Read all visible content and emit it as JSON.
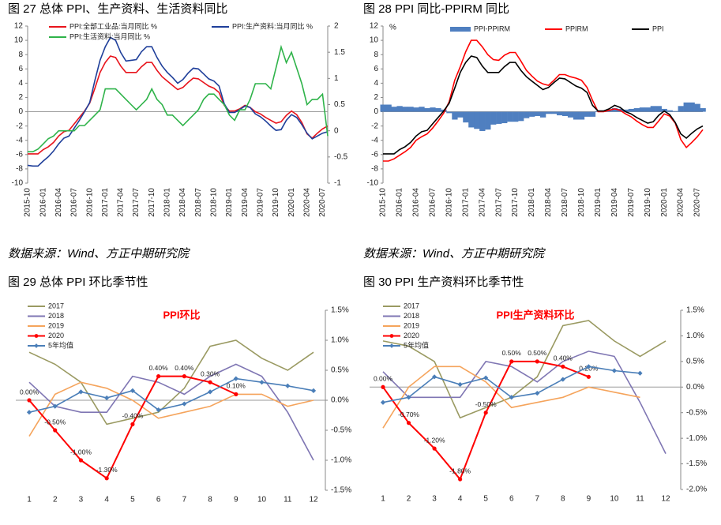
{
  "chart_data": [
    {
      "type": "line",
      "caption": "图 27  总体 PPI、生产资料、生活资料同比",
      "source": "数据来源：Wind、方正中期研究院",
      "categories": [
        "2015-10",
        null,
        null,
        "2016-01",
        null,
        null,
        "2016-04",
        null,
        null,
        "2016-07",
        null,
        null,
        "2016-10",
        null,
        null,
        "2017-01",
        null,
        null,
        "2017-04",
        null,
        null,
        "2017-07",
        null,
        null,
        "2017-10",
        null,
        null,
        "2018-01",
        null,
        null,
        "2018-04",
        null,
        null,
        "2018-07",
        null,
        null,
        "2018-10",
        null,
        null,
        "2019-01",
        null,
        null,
        "2019-04",
        null,
        null,
        "2019-07",
        null,
        null,
        "2019-10",
        null,
        null,
        "2020-01",
        null,
        null,
        "2020-04",
        null,
        null,
        "2020-07",
        null
      ],
      "ylim": [
        -10,
        12
      ],
      "yticks": [
        -10,
        -8,
        -6,
        -4,
        -2,
        0,
        2,
        4,
        6,
        8,
        10,
        12
      ],
      "y2lim": [
        -1,
        2
      ],
      "y2ticks": [
        -1,
        -0.5,
        0,
        0.5,
        1,
        1.5,
        2
      ],
      "series": [
        {
          "name": "PPI:全部工业品:当月同比 %",
          "color": "#e8141c",
          "values": [
            -5.9,
            -5.9,
            -5.9,
            -5.3,
            -4.9,
            -4.3,
            -3.4,
            -2.8,
            -2.6,
            -1.7,
            -0.8,
            0.1,
            1.2,
            3.3,
            5.5,
            6.9,
            7.8,
            7.6,
            6.4,
            5.5,
            5.5,
            5.5,
            6.3,
            6.9,
            6.9,
            5.8,
            4.9,
            4.3,
            3.7,
            3.1,
            3.4,
            4.1,
            4.7,
            4.6,
            4.1,
            3.6,
            3.3,
            2.7,
            0.9,
            0.1,
            0.1,
            0.4,
            0.9,
            0.6,
            0.0,
            -0.3,
            -0.8,
            -1.2,
            -1.6,
            -1.4,
            -0.5,
            0.1,
            -0.4,
            -1.5,
            -3.1,
            -3.7,
            -3.0,
            -2.4,
            -2.0
          ]
        },
        {
          "name": "PPI:生产资料:当月同比 %",
          "color": "#1f3f9a",
          "values": [
            -7.5,
            -7.6,
            -7.6,
            -6.9,
            -6.3,
            -5.5,
            -4.5,
            -3.7,
            -3.4,
            -2.3,
            -1.2,
            0.0,
            1.3,
            4.4,
            7.2,
            9.1,
            10.4,
            10.0,
            8.3,
            7.1,
            7.2,
            7.3,
            8.4,
            9.1,
            9.1,
            7.6,
            6.4,
            5.5,
            4.8,
            4.0,
            4.5,
            5.4,
            6.1,
            6.0,
            5.3,
            4.6,
            4.3,
            3.6,
            1.1,
            -0.1,
            -0.1,
            0.3,
            0.8,
            0.6,
            -0.3,
            -0.7,
            -1.3,
            -2.0,
            -2.6,
            -2.5,
            -1.2,
            -0.4,
            -0.8,
            -1.8,
            -3.0,
            -3.8,
            -3.4,
            -3.0,
            -2.8
          ]
        },
        {
          "name": "PPI:生活资料:当月同比 %",
          "color": "#2fb34a",
          "axis": "y2",
          "values": [
            -0.4,
            -0.4,
            -0.35,
            -0.25,
            -0.15,
            -0.1,
            0.0,
            0.0,
            0.0,
            0.0,
            0.1,
            0.1,
            0.2,
            0.3,
            0.4,
            0.8,
            0.8,
            0.8,
            0.7,
            0.6,
            0.5,
            0.4,
            0.5,
            0.6,
            0.8,
            0.6,
            0.5,
            0.3,
            0.3,
            0.2,
            0.1,
            0.2,
            0.3,
            0.4,
            0.6,
            0.7,
            0.7,
            0.6,
            0.5,
            0.3,
            0.2,
            0.4,
            0.4,
            0.6,
            0.9,
            0.9,
            0.9,
            0.8,
            1.2,
            1.6,
            1.3,
            1.5,
            1.2,
            0.9,
            0.5,
            0.6,
            0.6,
            0.7,
            -0.1
          ]
        }
      ]
    },
    {
      "type": "line",
      "caption": "图 28  PPI 同比-PPIRM 同比",
      "source": "数据来源：Wind、方正中期研究院",
      "ylabel": "%",
      "categories": [
        "2015-10",
        null,
        null,
        "2016-01",
        null,
        null,
        "2016-04",
        null,
        null,
        "2016-07",
        null,
        null,
        "2016-10",
        null,
        null,
        "2017-01",
        null,
        null,
        "2017-04",
        null,
        null,
        "2017-07",
        null,
        null,
        "2017-10",
        null,
        null,
        "2018-01",
        null,
        null,
        "2018-04",
        null,
        null,
        "2018-07",
        null,
        null,
        "2018-10",
        null,
        null,
        "2019-01",
        null,
        null,
        "2019-04",
        null,
        null,
        "2019-07",
        null,
        null,
        "2019-10",
        null,
        null,
        "2020-01",
        null,
        null,
        "2020-04",
        null,
        null,
        "2020-07",
        null
      ],
      "ylim": [
        -10,
        12
      ],
      "yticks": [
        -10,
        -8,
        -6,
        -4,
        -2,
        0,
        2,
        4,
        6,
        8,
        10,
        12
      ],
      "series": [
        {
          "name": "PPI-PPIRM",
          "color": "#4f7fc0",
          "kind": "bar",
          "values": [
            1.0,
            1.0,
            0.7,
            0.8,
            0.7,
            0.7,
            0.6,
            0.7,
            0.5,
            0.6,
            0.5,
            0.3,
            -0.2,
            -1.1,
            -0.8,
            -1.5,
            -2.2,
            -2.4,
            -2.7,
            -2.5,
            -1.8,
            -1.7,
            -1.6,
            -1.4,
            -1.4,
            -1.3,
            -0.9,
            -0.7,
            -0.6,
            -0.8,
            -0.3,
            -0.3,
            -0.5,
            -0.6,
            -0.8,
            -1.1,
            -1.1,
            -0.7,
            -0.7,
            0.1,
            0.1,
            0.2,
            0.5,
            0.4,
            0.3,
            0.4,
            0.5,
            0.6,
            0.6,
            0.8,
            0.8,
            0.4,
            0.2,
            0.1,
            0.8,
            1.3,
            1.3,
            1.1,
            0.5
          ]
        },
        {
          "name": "PPIRM",
          "color": "#ff0000",
          "values": [
            -6.9,
            -6.9,
            -6.6,
            -6.1,
            -5.6,
            -5.0,
            -4.0,
            -3.5,
            -3.1,
            -2.3,
            -1.3,
            -0.2,
            1.4,
            4.4,
            6.3,
            8.4,
            10.0,
            10.0,
            9.1,
            8.0,
            7.3,
            7.2,
            7.9,
            8.3,
            8.3,
            7.1,
            5.8,
            5.0,
            4.3,
            3.9,
            3.7,
            4.4,
            5.2,
            5.2,
            4.9,
            4.7,
            4.4,
            3.4,
            1.6,
            0.0,
            0.0,
            0.2,
            0.4,
            0.2,
            -0.3,
            -0.7,
            -1.3,
            -1.8,
            -2.2,
            -2.2,
            -1.3,
            -0.3,
            -0.6,
            -1.6,
            -3.9,
            -5.0,
            -4.3,
            -3.5,
            -2.5
          ]
        },
        {
          "name": "PPI",
          "color": "#000000",
          "values": [
            -5.9,
            -5.9,
            -5.9,
            -5.3,
            -4.9,
            -4.3,
            -3.4,
            -2.8,
            -2.6,
            -1.7,
            -0.8,
            0.1,
            1.2,
            3.3,
            5.5,
            6.9,
            7.8,
            7.6,
            6.4,
            5.5,
            5.5,
            5.5,
            6.3,
            6.9,
            6.9,
            5.8,
            4.9,
            4.3,
            3.7,
            3.1,
            3.4,
            4.1,
            4.7,
            4.6,
            4.1,
            3.6,
            3.3,
            2.7,
            0.9,
            0.1,
            0.1,
            0.4,
            0.9,
            0.6,
            0.0,
            -0.3,
            -0.8,
            -1.2,
            -1.6,
            -1.4,
            -0.5,
            0.1,
            -0.4,
            -1.5,
            -3.1,
            -3.7,
            -3.0,
            -2.4,
            -2.0
          ]
        }
      ]
    },
    {
      "type": "line",
      "caption": "图 29  总体 PPI 环比季节性",
      "title": "PPI环比",
      "categories": [
        "1",
        "2",
        "3",
        "4",
        "5",
        "6",
        "7",
        "8",
        "9",
        "10",
        "11",
        "12"
      ],
      "ylim": [
        -1.5,
        1.5
      ],
      "yticks": [
        {
          "value": -1.5,
          "label": "-1.5%"
        },
        {
          "value": -1.0,
          "label": "-1.0%"
        },
        {
          "value": -0.5,
          "label": "-0.5%"
        },
        {
          "value": 0,
          "label": "0.0%"
        },
        {
          "value": 0.5,
          "label": "0.5%"
        },
        {
          "value": 1.0,
          "label": "1.0%"
        },
        {
          "value": 1.5,
          "label": "1.5%"
        }
      ],
      "series": [
        {
          "name": "2017",
          "color": "#9a9a62",
          "values": [
            0.8,
            0.6,
            0.3,
            -0.4,
            -0.3,
            -0.2,
            0.2,
            0.9,
            1.0,
            0.7,
            0.5,
            0.8
          ]
        },
        {
          "name": "2018",
          "color": "#7f76b3",
          "values": [
            0.3,
            -0.1,
            -0.2,
            -0.2,
            0.4,
            0.3,
            0.1,
            0.4,
            0.6,
            0.4,
            -0.2,
            -1.0
          ]
        },
        {
          "name": "2019",
          "color": "#f5a45c",
          "values": [
            -0.6,
            0.1,
            0.3,
            0.2,
            0.0,
            -0.3,
            -0.2,
            -0.1,
            0.1,
            0.1,
            -0.1,
            0.0
          ]
        },
        {
          "name": "2020",
          "color": "#ff0000",
          "marker": "circle",
          "values": [
            0.0,
            -0.5,
            -1.0,
            -1.3,
            -0.4,
            0.4,
            0.4,
            0.3,
            0.1,
            null,
            null,
            null
          ],
          "value_labels": [
            "0.00%",
            "-0.50%",
            "-1.00%",
            "-1.30%",
            "-0.40%",
            "0.40%",
            "0.40%",
            "0.30%",
            "0.10%",
            null,
            null,
            null
          ]
        },
        {
          "name": "5年均值",
          "color": "#4a7eb8",
          "marker": "diamond",
          "values": [
            -0.2,
            -0.1,
            0.14,
            0.04,
            0.16,
            -0.16,
            -0.06,
            0.14,
            0.36,
            0.3,
            0.24,
            0.16
          ]
        }
      ]
    },
    {
      "type": "line",
      "caption": "图 30  PPI 生产资料环比季节性",
      "title": "PPI生产资料环比",
      "categories": [
        "1",
        "2",
        "3",
        "4",
        "5",
        "6",
        "7",
        "8",
        "9",
        "10",
        "11",
        "12"
      ],
      "ylim": [
        -2.0,
        1.5
      ],
      "yticks": [
        {
          "value": -2.0,
          "label": "-2.0%"
        },
        {
          "value": -1.5,
          "label": "-1.5%"
        },
        {
          "value": -1.0,
          "label": "-1.0%"
        },
        {
          "value": -0.5,
          "label": "-0.5%"
        },
        {
          "value": 0,
          "label": "0.0%"
        },
        {
          "value": 0.5,
          "label": "0.5%"
        },
        {
          "value": 1.0,
          "label": "1.0%"
        },
        {
          "value": 1.5,
          "label": "1.5%"
        }
      ],
      "series": [
        {
          "name": "2017",
          "color": "#9a9a62",
          "values": [
            0.9,
            0.8,
            0.5,
            -0.6,
            -0.4,
            -0.2,
            0.2,
            1.2,
            1.3,
            0.9,
            0.6,
            0.9
          ]
        },
        {
          "name": "2018",
          "color": "#7f76b3",
          "values": [
            0.3,
            -0.2,
            -0.2,
            -0.2,
            0.5,
            0.4,
            0.1,
            0.5,
            0.7,
            0.6,
            -0.3,
            -1.3
          ]
        },
        {
          "name": "2019",
          "color": "#f5a45c",
          "values": [
            -0.8,
            0.0,
            0.4,
            0.4,
            0.1,
            -0.4,
            -0.3,
            -0.2,
            0.0,
            -0.1,
            -0.2,
            null
          ]
        },
        {
          "name": "2020",
          "color": "#ff0000",
          "marker": "circle",
          "values": [
            0.0,
            -0.7,
            -1.2,
            -1.8,
            -0.5,
            0.5,
            0.5,
            0.4,
            0.2,
            null,
            null,
            null
          ],
          "value_labels": [
            "0.00%",
            "-0.70%",
            "-1.20%",
            "-1.80%",
            "-0.50%",
            "0.50%",
            "0.50%",
            "0.40%",
            "0.20%",
            null,
            null,
            null
          ]
        },
        {
          "name": "5年均值",
          "color": "#4a7eb8",
          "marker": "diamond",
          "values": [
            -0.3,
            -0.2,
            0.2,
            0.05,
            0.18,
            -0.2,
            -0.12,
            0.15,
            0.4,
            0.32,
            0.27,
            null
          ]
        }
      ]
    }
  ]
}
